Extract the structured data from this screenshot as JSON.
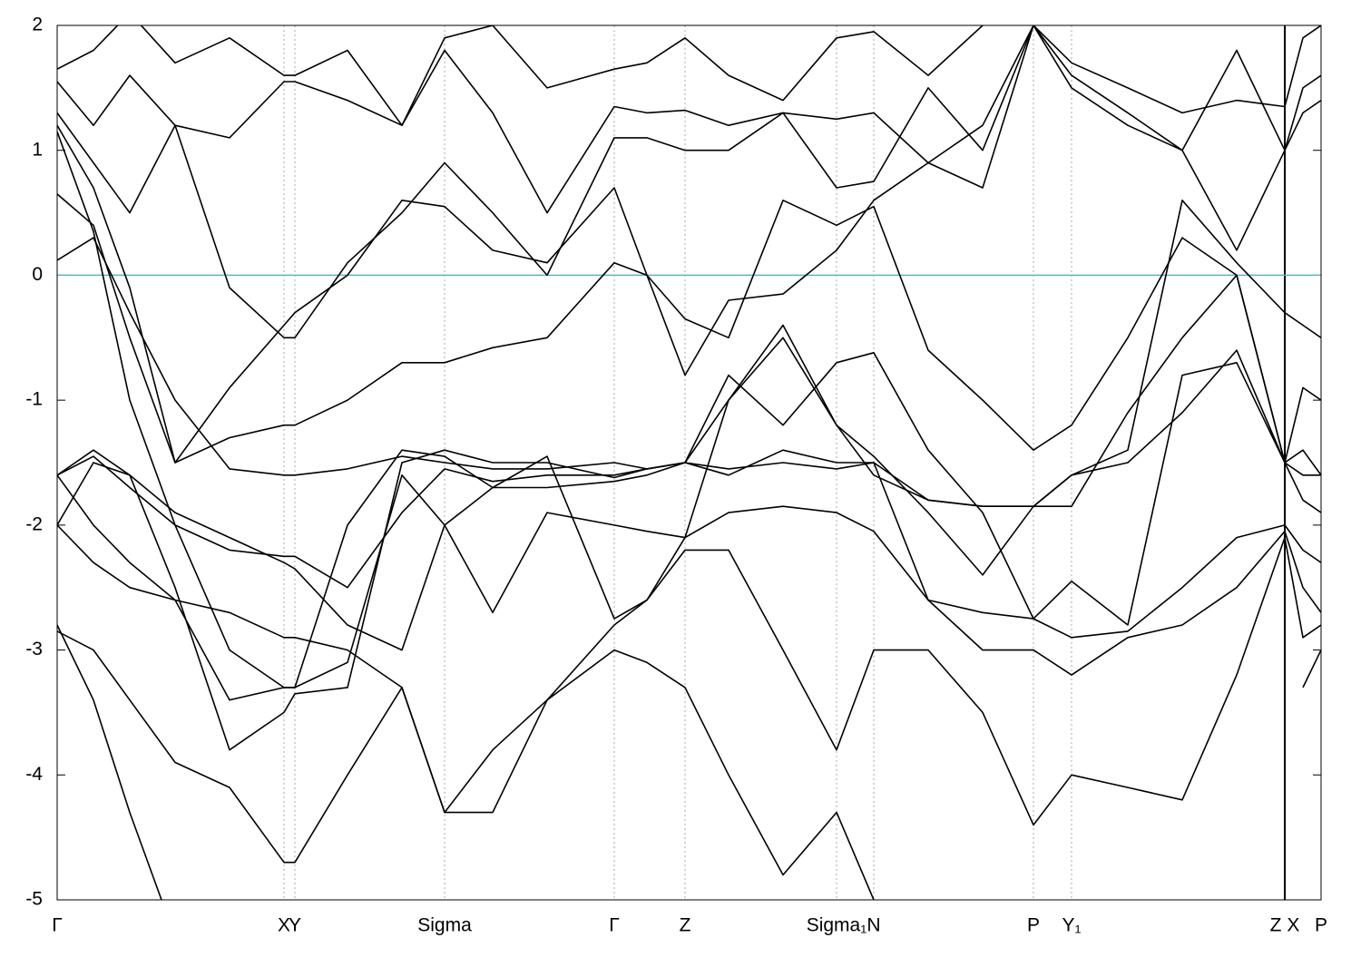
{
  "chart_data": {
    "type": "line",
    "x": [
      0,
      40,
      80,
      130,
      190,
      250,
      262,
      320,
      380,
      427,
      480,
      540,
      614,
      650,
      692,
      740,
      800,
      859,
      900,
      960,
      1020,
      1076,
      1118,
      1180,
      1240,
      1300,
      1353,
      1373,
      1393
    ],
    "series": [
      {
        "color": "#000000",
        "values": [
          -2.8,
          -3.4,
          -4.3,
          -5.3,
          null,
          null,
          null,
          null,
          null,
          null,
          null,
          null,
          null,
          null,
          null,
          null,
          null,
          null,
          null,
          null,
          null,
          null,
          null,
          null,
          null,
          null,
          null,
          null,
          null
        ]
      },
      {
        "color": "#000000",
        "values": [
          -2.85,
          -3.0,
          -3.4,
          -3.9,
          -4.1,
          -4.7,
          -4.7,
          -4.0,
          -3.3,
          -4.3,
          -4.3,
          -3.4,
          -3.0,
          -3.1,
          -3.3,
          -4.0,
          -4.8,
          -4.3,
          -5.0,
          null,
          null,
          null,
          null,
          null,
          null,
          null,
          null,
          -3.3,
          -3.0
        ]
      },
      {
        "color": "#000000",
        "values": [
          -2.0,
          -2.3,
          -2.5,
          -2.6,
          -2.7,
          -2.9,
          -2.9,
          -3.0,
          -3.3,
          -4.3,
          -3.8,
          -3.4,
          -2.8,
          -2.6,
          -2.2,
          -2.2,
          -3.0,
          -3.8,
          -3.0,
          -3.0,
          -3.5,
          -4.4,
          -4.0,
          -4.1,
          -4.2,
          -3.2,
          -2.1,
          -2.9,
          -2.8
        ]
      },
      {
        "color": "#000000",
        "values": [
          -1.6,
          -2.0,
          -2.3,
          -2.6,
          -3.4,
          -3.3,
          -3.3,
          -3.1,
          -1.6,
          -2.0,
          -2.7,
          -1.9,
          -2.0,
          -2.05,
          -2.1,
          -1.9,
          -1.85,
          -1.9,
          -2.05,
          -2.6,
          -3.0,
          -3.0,
          -3.2,
          -2.9,
          -2.8,
          -2.5,
          -2.05,
          -2.5,
          -2.7
        ]
      },
      {
        "color": "#000000",
        "values": [
          -1.6,
          -1.45,
          -1.7,
          -2.0,
          -2.2,
          -2.25,
          -2.25,
          -2.5,
          -1.9,
          -1.55,
          -1.65,
          -1.6,
          -1.6,
          -1.55,
          -1.5,
          -1.55,
          -1.5,
          -1.55,
          -1.5,
          -1.8,
          -1.85,
          -1.85,
          -1.6,
          -1.5,
          -1.1,
          -0.6,
          -1.5,
          -1.4,
          -1.6
        ]
      },
      {
        "color": "#000000",
        "values": [
          -2.0,
          -1.5,
          -1.6,
          -1.9,
          -2.1,
          -2.3,
          -2.35,
          -2.8,
          -3.0,
          -2.0,
          -1.7,
          -1.7,
          -1.65,
          -1.6,
          -1.5,
          -1.6,
          -1.4,
          -1.5,
          -1.5,
          -2.6,
          -2.7,
          -2.75,
          -2.45,
          -2.8,
          -0.8,
          -0.7,
          -1.5,
          -1.8,
          -1.9
        ]
      },
      {
        "color": "#000000",
        "values": [
          -1.6,
          -1.4,
          -1.6,
          -2.5,
          -3.8,
          -3.5,
          -3.35,
          -3.3,
          -1.5,
          -1.4,
          -1.5,
          -1.5,
          -1.62,
          -1.55,
          -1.5,
          -0.8,
          -1.2,
          -0.7,
          -0.62,
          -1.4,
          -1.9,
          -2.75,
          -2.9,
          -2.85,
          -2.5,
          -2.1,
          -2.0,
          -2.2,
          -2.3
        ]
      },
      {
        "color": "#000000",
        "values": [
          1.15,
          0.35,
          -1.0,
          -2.0,
          -3.0,
          -3.3,
          -3.3,
          -2.0,
          -1.4,
          -1.45,
          -1.7,
          -1.45,
          -2.75,
          -2.6,
          -2.1,
          -1.0,
          -0.4,
          -1.2,
          -1.45,
          -1.9,
          -2.4,
          -1.85,
          -1.6,
          -1.4,
          0.6,
          0.1,
          -0.3,
          -0.4,
          -0.5
        ]
      },
      {
        "color": "#000000",
        "values": [
          0.12,
          0.3,
          -0.3,
          -1.0,
          -1.55,
          -1.6,
          -1.6,
          -1.55,
          -1.45,
          -1.5,
          -1.55,
          -1.55,
          -1.5,
          -1.55,
          -1.5,
          -1.0,
          -0.5,
          -1.2,
          -1.6,
          -1.8,
          -1.85,
          -1.85,
          -1.85,
          -1.1,
          -0.5,
          0.0,
          -1.5,
          -0.9,
          -1.0
        ]
      },
      {
        "color": "#000000",
        "values": [
          0.65,
          0.4,
          -0.5,
          -1.5,
          -1.3,
          -1.2,
          -1.2,
          -1.0,
          -0.7,
          -0.7,
          -0.58,
          -0.5,
          0.1,
          0.0,
          -0.35,
          -0.5,
          0.6,
          0.4,
          0.55,
          -0.6,
          -1.0,
          -1.4,
          -1.2,
          -0.5,
          0.3,
          0.0,
          -1.5,
          -1.6,
          -1.6
        ]
      },
      {
        "color": "#000000",
        "values": [
          1.2,
          0.7,
          -0.1,
          -1.5,
          -0.9,
          -0.4,
          -0.3,
          0.0,
          0.6,
          0.55,
          0.2,
          0.1,
          0.7,
          0.0,
          -0.8,
          -0.2,
          -0.15,
          0.2,
          0.6,
          0.9,
          0.7,
          2.0,
          1.5,
          1.2,
          1.0,
          0.2,
          1.0,
          1.3,
          1.4
        ]
      },
      {
        "color": "#000000",
        "values": [
          1.3,
          0.9,
          0.5,
          1.2,
          -0.1,
          -0.5,
          -0.5,
          0.1,
          0.5,
          0.9,
          0.5,
          0.0,
          1.1,
          1.1,
          1.0,
          1.0,
          1.3,
          0.7,
          0.75,
          1.5,
          1.0,
          2.0,
          1.6,
          1.3,
          1.0,
          1.8,
          1.0,
          1.5,
          1.6
        ]
      },
      {
        "color": "#000000",
        "values": [
          1.55,
          1.2,
          1.6,
          1.2,
          1.1,
          1.55,
          1.55,
          1.4,
          1.2,
          1.8,
          1.3,
          0.5,
          1.35,
          1.3,
          1.32,
          1.2,
          1.3,
          1.25,
          1.3,
          0.9,
          1.2,
          2.0,
          1.7,
          1.5,
          1.3,
          1.4,
          1.35,
          1.9,
          2.0
        ]
      },
      {
        "color": "#000000",
        "values": [
          1.65,
          1.8,
          2.1,
          1.7,
          1.9,
          1.6,
          1.6,
          1.8,
          1.2,
          1.9,
          2.0,
          1.5,
          1.65,
          1.7,
          1.9,
          1.6,
          1.4,
          1.9,
          1.95,
          1.6,
          2.0,
          null,
          null,
          null,
          null,
          null,
          null,
          null,
          null
        ]
      }
    ],
    "xlim": [
      0,
      1393
    ],
    "xticks": [
      {
        "value": 0,
        "label": "Γ"
      },
      {
        "value": 250,
        "label": "X"
      },
      {
        "value": 262,
        "label": "Y"
      },
      {
        "value": 427,
        "label": "Sigma"
      },
      {
        "value": 614,
        "label": "Γ"
      },
      {
        "value": 692,
        "label": "Z"
      },
      {
        "value": 859,
        "label": "Sigma₁"
      },
      {
        "value": 900,
        "label": "N"
      },
      {
        "value": 1076,
        "label": "P"
      },
      {
        "value": 1118,
        "label": "Y₁"
      },
      {
        "value": 1353,
        "label": "Z X"
      },
      {
        "value": 1393,
        "label": "P"
      }
    ],
    "breaks": [
      1353
    ],
    "ylim": [
      -5,
      2
    ],
    "yticks": [
      -5,
      -4,
      -3,
      -2,
      -1,
      0,
      1,
      2
    ],
    "hline": 0,
    "hline_color": "#5ab4c8",
    "grid": true
  }
}
